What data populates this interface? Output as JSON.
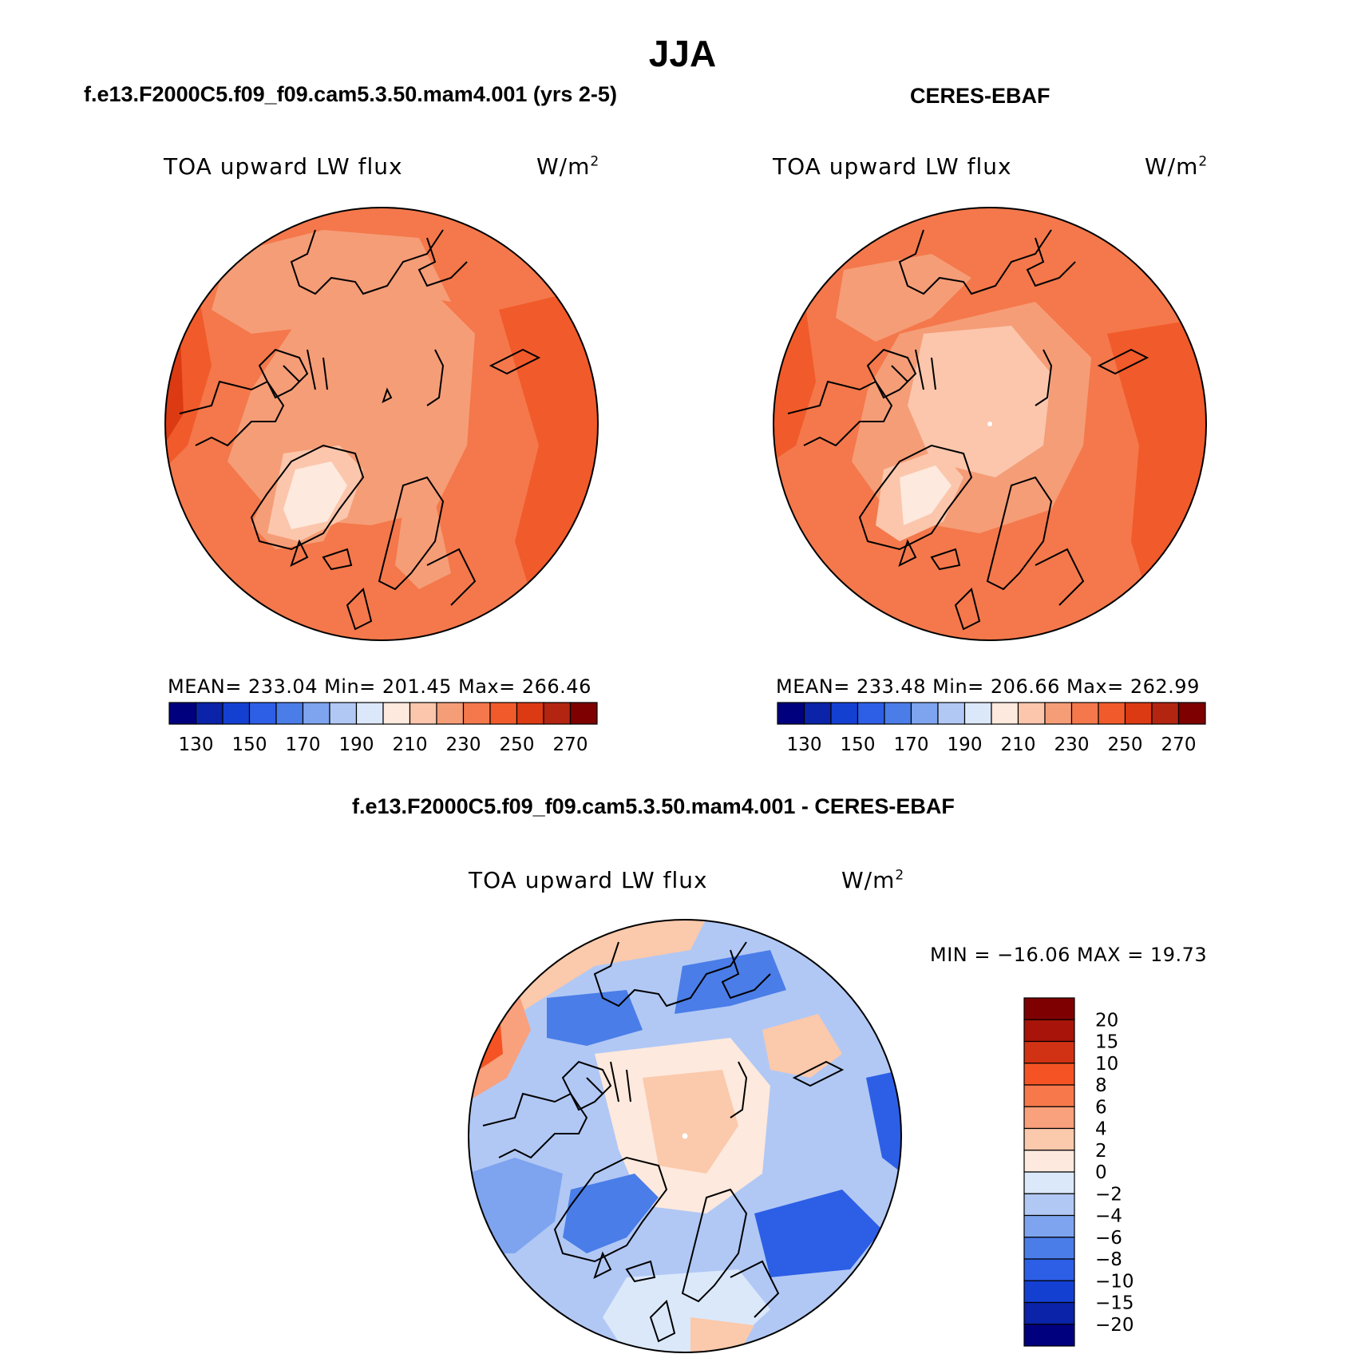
{
  "figure": {
    "title": "JJA",
    "panels": [
      {
        "id": "model",
        "case_title": "f.e13.F2000C5.f09_f09.cam5.3.50.mam4.001 (yrs 2-5)",
        "variable": "TOA upward LW flux",
        "units_base": "W/m",
        "units_exp": "2",
        "stats": "MEAN= 233.04   Min= 201.45   Max= 266.46",
        "mean": 233.04,
        "min": 201.45,
        "max": 266.46
      },
      {
        "id": "obs",
        "case_title": "CERES-EBAF",
        "variable": "TOA upward LW flux",
        "units_base": "W/m",
        "units_exp": "2",
        "stats": "MEAN= 233.48   Min= 206.66   Max= 262.99",
        "mean": 233.48,
        "min": 206.66,
        "max": 262.99
      },
      {
        "id": "diff",
        "case_title": "f.e13.F2000C5.f09_f09.cam5.3.50.mam4.001 - CERES-EBAF",
        "variable": "TOA upward LW flux",
        "units_base": "W/m",
        "units_exp": "2",
        "stats": "MIN = −16.06 MAX =   19.73",
        "min": -16.06,
        "max": 19.73
      }
    ],
    "abs_colorbar": {
      "colors": [
        "#00007f",
        "#0a23a8",
        "#1440d2",
        "#2d5fe6",
        "#4a7de8",
        "#7ea4ef",
        "#b1c8f5",
        "#dbe8fa",
        "#fde9dd",
        "#fbc6ac",
        "#f59d77",
        "#f4784b",
        "#f15a2a",
        "#dc3a12",
        "#b32511",
        "#7f0000"
      ],
      "tick_labels": [
        "130",
        "150",
        "170",
        "190",
        "210",
        "230",
        "250",
        "270"
      ]
    },
    "diff_colorbar": {
      "colors": [
        "#7f0000",
        "#a8140a",
        "#d23214",
        "#f55323",
        "#f7784b",
        "#f9a07c",
        "#fbc9ab",
        "#fde9dd",
        "#dbe8fa",
        "#b1c8f5",
        "#7ea4ef",
        "#4a7de8",
        "#2d5fe6",
        "#1440d2",
        "#0a23a8",
        "#00007f"
      ],
      "tick_labels": [
        "20",
        "15",
        "10",
        "8",
        "6",
        "4",
        "2",
        "0",
        "−2",
        "−4",
        "−6",
        "−8",
        "−10",
        "−15",
        "−20"
      ]
    }
  }
}
